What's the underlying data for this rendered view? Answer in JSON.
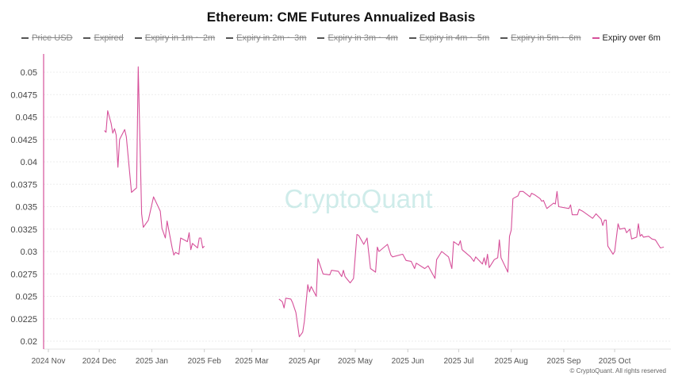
{
  "chart_data": {
    "type": "line",
    "title": "Ethereum: CME Futures Annualized Basis",
    "legend": {
      "placement": "top",
      "items": [
        {
          "label": "Price USD",
          "hidden": true,
          "color": "#555555"
        },
        {
          "label": "Expired",
          "hidden": true,
          "color": "#555555"
        },
        {
          "label": "Expiry in 1m ~ 2m",
          "hidden": true,
          "color": "#555555"
        },
        {
          "label": "Expiry in 2m ~ 3m",
          "hidden": true,
          "color": "#555555"
        },
        {
          "label": "Expiry in 3m ~ 4m",
          "hidden": true,
          "color": "#555555"
        },
        {
          "label": "Expiry in 4m ~ 5m",
          "hidden": true,
          "color": "#555555"
        },
        {
          "label": "Expiry in 5m ~ 6m",
          "hidden": true,
          "color": "#555555"
        },
        {
          "label": "Expiry over 6m",
          "hidden": false,
          "color": "#d6509a"
        }
      ]
    },
    "xlim": [
      "2024-11-01",
      "2025-11-01"
    ],
    "x_ticks": [
      "2024 Nov",
      "2024 Dec",
      "2025 Jan",
      "2025 Feb",
      "2025 Mar",
      "2025 Apr",
      "2025 May",
      "2025 Jun",
      "2025 Jul",
      "2025 Aug",
      "2025 Sep",
      "2025 Oct"
    ],
    "x_tick_dates": [
      "2024-11-01",
      "2024-12-01",
      "2025-01-01",
      "2025-02-01",
      "2025-03-01",
      "2025-04-01",
      "2025-05-01",
      "2025-06-01",
      "2025-07-01",
      "2025-08-01",
      "2025-09-01",
      "2025-10-01"
    ],
    "ylim": [
      0.02,
      0.0515
    ],
    "y_ticks": [
      "0.02",
      "0.0225",
      "0.025",
      "0.0275",
      "0.03",
      "0.0325",
      "0.035",
      "0.0375",
      "0.04",
      "0.0425",
      "0.045",
      "0.0475",
      "0.05"
    ],
    "grid": true,
    "series": [
      {
        "name": "Expiry over 6m",
        "color": "#d6509a",
        "points": [
          [
            "2024-12-04",
            0.0435
          ],
          [
            "2024-12-05",
            0.0433
          ],
          [
            "2024-12-06",
            0.0457
          ],
          [
            "2024-12-08",
            0.0443
          ],
          [
            "2024-12-09",
            0.0432
          ],
          [
            "2024-12-10",
            0.0437
          ],
          [
            "2024-12-11",
            0.043
          ],
          [
            "2024-12-12",
            0.0394
          ],
          [
            "2024-12-13",
            0.0425
          ],
          [
            "2024-12-16",
            0.0436
          ],
          [
            "2024-12-17",
            0.0428
          ],
          [
            "2024-12-20",
            0.0366
          ],
          [
            "2024-12-23",
            0.0371
          ],
          [
            "2024-12-24",
            0.0506
          ],
          [
            "2024-12-26",
            0.0342
          ],
          [
            "2024-12-27",
            0.0327
          ],
          [
            "2024-12-30",
            0.0335
          ],
          [
            "2025-01-02",
            0.0361
          ],
          [
            "2025-01-06",
            0.0345
          ],
          [
            "2025-01-07",
            0.0326
          ],
          [
            "2025-01-09",
            0.0315
          ],
          [
            "2025-01-10",
            0.0334
          ],
          [
            "2025-01-13",
            0.0304
          ],
          [
            "2025-01-14",
            0.0296
          ],
          [
            "2025-01-15",
            0.0299
          ],
          [
            "2025-01-17",
            0.0297
          ],
          [
            "2025-01-18",
            0.0315
          ],
          [
            "2025-01-21",
            0.0312
          ],
          [
            "2025-01-22",
            0.0311
          ],
          [
            "2025-01-23",
            0.0321
          ],
          [
            "2025-01-24",
            0.0302
          ],
          [
            "2025-01-25",
            0.0309
          ],
          [
            "2025-01-28",
            0.0304
          ],
          [
            "2025-01-29",
            0.0315
          ],
          [
            "2025-01-30",
            0.0315
          ],
          [
            "2025-01-31",
            0.0304
          ],
          [
            "2025-02-01",
            0.0306
          ],
          [
            "2025-03-17",
            0.0247
          ],
          [
            "2025-03-19",
            0.0244
          ],
          [
            "2025-03-20",
            0.0237
          ],
          [
            "2025-03-21",
            0.0248
          ],
          [
            "2025-03-24",
            0.0247
          ],
          [
            "2025-03-25",
            0.0243
          ],
          [
            "2025-03-27",
            0.0232
          ],
          [
            "2025-03-29",
            0.0205
          ],
          [
            "2025-03-31",
            0.021
          ],
          [
            "2025-04-01",
            0.0222
          ],
          [
            "2025-04-03",
            0.0263
          ],
          [
            "2025-04-04",
            0.0255
          ],
          [
            "2025-04-05",
            0.0261
          ],
          [
            "2025-04-08",
            0.025
          ],
          [
            "2025-04-09",
            0.0292
          ],
          [
            "2025-04-12",
            0.0275
          ],
          [
            "2025-04-16",
            0.0274
          ],
          [
            "2025-04-17",
            0.0279
          ],
          [
            "2025-04-21",
            0.0278
          ],
          [
            "2025-04-23",
            0.0272
          ],
          [
            "2025-04-24",
            0.0279
          ],
          [
            "2025-04-25",
            0.0272
          ],
          [
            "2025-04-28",
            0.0265
          ],
          [
            "2025-04-30",
            0.027
          ],
          [
            "2025-05-02",
            0.0319
          ],
          [
            "2025-05-03",
            0.0318
          ],
          [
            "2025-05-06",
            0.0308
          ],
          [
            "2025-05-08",
            0.0315
          ],
          [
            "2025-05-10",
            0.0281
          ],
          [
            "2025-05-13",
            0.0277
          ],
          [
            "2025-05-14",
            0.0305
          ],
          [
            "2025-05-15",
            0.03
          ],
          [
            "2025-05-20",
            0.0308
          ],
          [
            "2025-05-22",
            0.0296
          ],
          [
            "2025-05-23",
            0.0294
          ],
          [
            "2025-05-29",
            0.0297
          ],
          [
            "2025-05-31",
            0.029
          ],
          [
            "2025-06-03",
            0.0289
          ],
          [
            "2025-06-05",
            0.0281
          ],
          [
            "2025-06-06",
            0.0287
          ],
          [
            "2025-06-11",
            0.0281
          ],
          [
            "2025-06-13",
            0.0284
          ],
          [
            "2025-06-17",
            0.027
          ],
          [
            "2025-06-18",
            0.0291
          ],
          [
            "2025-06-21",
            0.03
          ],
          [
            "2025-06-25",
            0.0294
          ],
          [
            "2025-06-27",
            0.0281
          ],
          [
            "2025-06-28",
            0.0311
          ],
          [
            "2025-07-01",
            0.0307
          ],
          [
            "2025-07-02",
            0.0312
          ],
          [
            "2025-07-03",
            0.0302
          ],
          [
            "2025-07-08",
            0.0294
          ],
          [
            "2025-07-10",
            0.0289
          ],
          [
            "2025-07-11",
            0.0294
          ],
          [
            "2025-07-15",
            0.0286
          ],
          [
            "2025-07-16",
            0.0293
          ],
          [
            "2025-07-17",
            0.0285
          ],
          [
            "2025-07-18",
            0.0297
          ],
          [
            "2025-07-19",
            0.0282
          ],
          [
            "2025-07-22",
            0.0291
          ],
          [
            "2025-07-24",
            0.0293
          ],
          [
            "2025-07-25",
            0.0313
          ],
          [
            "2025-07-26",
            0.0293
          ],
          [
            "2025-07-30",
            0.0277
          ],
          [
            "2025-07-31",
            0.0317
          ],
          [
            "2025-08-01",
            0.0324
          ],
          [
            "2025-08-02",
            0.0359
          ],
          [
            "2025-08-05",
            0.0362
          ],
          [
            "2025-08-06",
            0.0367
          ],
          [
            "2025-08-08",
            0.0367
          ],
          [
            "2025-08-12",
            0.0361
          ],
          [
            "2025-08-13",
            0.0365
          ],
          [
            "2025-08-15",
            0.0363
          ],
          [
            "2025-08-18",
            0.0359
          ],
          [
            "2025-08-19",
            0.0356
          ],
          [
            "2025-08-20",
            0.0357
          ],
          [
            "2025-08-22",
            0.0348
          ],
          [
            "2025-08-26",
            0.0354
          ],
          [
            "2025-08-27",
            0.0353
          ],
          [
            "2025-08-28",
            0.0367
          ],
          [
            "2025-08-29",
            0.035
          ],
          [
            "2025-09-04",
            0.0348
          ],
          [
            "2025-09-05",
            0.0352
          ],
          [
            "2025-09-06",
            0.0341
          ],
          [
            "2025-09-09",
            0.0341
          ],
          [
            "2025-09-10",
            0.0347
          ],
          [
            "2025-09-12",
            0.0345
          ],
          [
            "2025-09-18",
            0.0337
          ],
          [
            "2025-09-20",
            0.0342
          ],
          [
            "2025-09-23",
            0.0336
          ],
          [
            "2025-09-24",
            0.0329
          ],
          [
            "2025-09-25",
            0.0335
          ],
          [
            "2025-09-26",
            0.0335
          ],
          [
            "2025-09-27",
            0.0306
          ],
          [
            "2025-09-30",
            0.0297
          ],
          [
            "2025-10-01",
            0.03
          ],
          [
            "2025-10-03",
            0.0331
          ],
          [
            "2025-10-04",
            0.0325
          ],
          [
            "2025-10-07",
            0.0326
          ],
          [
            "2025-10-08",
            0.0321
          ],
          [
            "2025-10-10",
            0.0325
          ],
          [
            "2025-10-11",
            0.0314
          ],
          [
            "2025-10-14",
            0.0316
          ],
          [
            "2025-10-15",
            0.0331
          ],
          [
            "2025-10-16",
            0.0317
          ],
          [
            "2025-10-17",
            0.0319
          ],
          [
            "2025-10-18",
            0.0316
          ],
          [
            "2025-10-21",
            0.0317
          ],
          [
            "2025-10-23",
            0.0314
          ],
          [
            "2025-10-25",
            0.0313
          ],
          [
            "2025-10-28",
            0.0304
          ],
          [
            "2025-10-30",
            0.0305
          ]
        ]
      }
    ],
    "watermark": "CryptoQuant",
    "credit": "© CryptoQuant. All rights reserved"
  }
}
